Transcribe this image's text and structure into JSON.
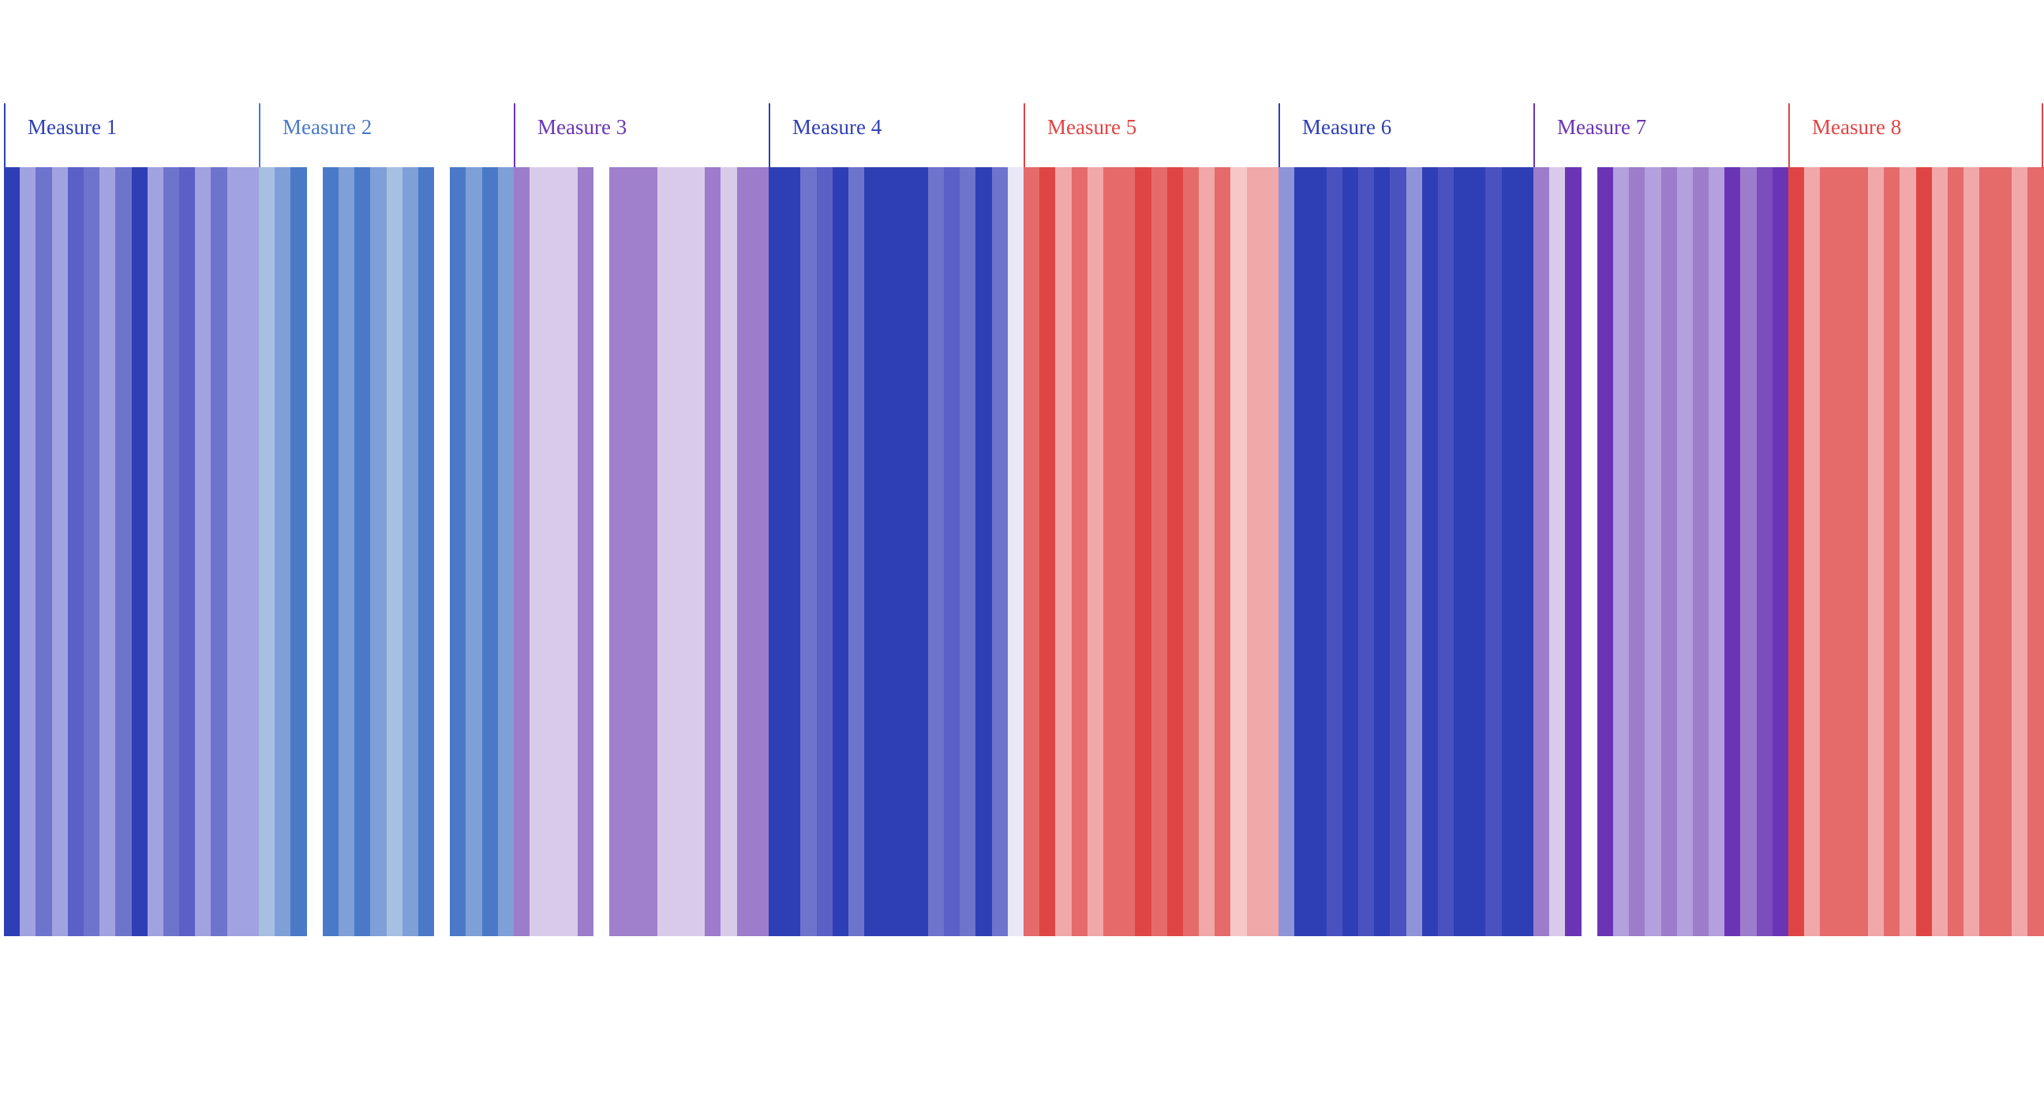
{
  "chart_data": {
    "type": "heatmap",
    "title": "",
    "xlabel": "",
    "ylabel": "",
    "grid": false,
    "legend": "none",
    "measures": [
      {
        "name": "Measure 1",
        "label_color": "#2e3fb5",
        "header_border_color": "#2e3fb5",
        "stripes": [
          "#2e3fb5",
          "#a1a3e0",
          "#6e74cc",
          "#a1a3e0",
          "#5a60c6",
          "#6e74cc",
          "#a1a3e0",
          "#6e74cc",
          "#2e3fb5",
          "#a1a3e0",
          "#6e74cc",
          "#5a60c6",
          "#a1a3e0",
          "#6e74cc",
          "#a1a3e0",
          "#a1a3e0"
        ]
      },
      {
        "name": "Measure 2",
        "label_color": "#4a7ac7",
        "header_border_color": "#4a7ac7",
        "stripes": [
          "#a7c0e2",
          "#7ea0d6",
          "#4a7ac7",
          "#ffffff",
          "#4a7ac7",
          "#7ea0d6",
          "#4a7ac7",
          "#7ea0d6",
          "#a7c0e2",
          "#7ea0d6",
          "#4a7ac7",
          "#ffffff",
          "#4a7ac7",
          "#7ea0d6",
          "#4a7ac7",
          "#7ea0d6"
        ]
      },
      {
        "name": "Measure 3",
        "label_color": "#6a35b5",
        "header_border_color": "#6a35b5",
        "stripes": [
          "#9c7ccb",
          "#d8cbea",
          "#d8cbea",
          "#d8cbea",
          "#9c7ccb",
          "#ffffff",
          "#a07fcc",
          "#a07fcc",
          "#a07fcc",
          "#d8cbea",
          "#d8cbea",
          "#d8cbea",
          "#9c7ccb",
          "#d8cbea",
          "#9c7ccb",
          "#9c7ccb"
        ]
      },
      {
        "name": "Measure 4",
        "label_color": "#2e3fb5",
        "header_border_color": "#2e3fb5",
        "stripes": [
          "#2e3fb5",
          "#2e3fb5",
          "#6e74cc",
          "#5a60c6",
          "#2e3fb5",
          "#6e74cc",
          "#2e3fb5",
          "#2e3fb5",
          "#2e3fb5",
          "#2e3fb5",
          "#6e74cc",
          "#5a60c6",
          "#6e74cc",
          "#2e3fb5",
          "#6e74cc",
          "#e8e8f7"
        ]
      },
      {
        "name": "Measure 5",
        "label_color": "#e04545",
        "header_border_color": "#e04545",
        "stripes": [
          "#e56b6b",
          "#e04545",
          "#f0a8a8",
          "#e56b6b",
          "#f0a8a8",
          "#e56b6b",
          "#e56b6b",
          "#e04545",
          "#e56b6b",
          "#e04545",
          "#e56b6b",
          "#f0a8a8",
          "#e56b6b",
          "#f5c8c8",
          "#f0a8a8",
          "#f0a8a8"
        ]
      },
      {
        "name": "Measure 6",
        "label_color": "#2e3fb5",
        "header_border_color": "#2e3fb5",
        "stripes": [
          "#8f94d8",
          "#2e3fb5",
          "#2e3fb5",
          "#4a52c0",
          "#2e3fb5",
          "#4a52c0",
          "#2e3fb5",
          "#4a52c0",
          "#8f94d8",
          "#2e3fb5",
          "#4a52c0",
          "#2e3fb5",
          "#2e3fb5",
          "#4a52c0",
          "#2e3fb5",
          "#2e3fb5"
        ]
      },
      {
        "name": "Measure 7",
        "label_color": "#6a35b5",
        "header_border_color": "#6a35b5",
        "stripes": [
          "#9c7ccb",
          "#d8cbea",
          "#6a35b5",
          "#ffffff",
          "#6a35b5",
          "#b4a0dc",
          "#9c7ccb",
          "#b4a0dc",
          "#9c7ccb",
          "#b4a0dc",
          "#9c7ccb",
          "#b4a0dc",
          "#6a35b5",
          "#9c7ccb",
          "#7b4dbd",
          "#6a35b5"
        ]
      },
      {
        "name": "Measure 8",
        "label_color": "#e04545",
        "header_border_color": "#e04545",
        "stripes": [
          "#e04545",
          "#f0a8a8",
          "#e56b6b",
          "#e56b6b",
          "#e56b6b",
          "#f0a8a8",
          "#e56b6b",
          "#f0a8a8",
          "#e04545",
          "#f0a8a8",
          "#e56b6b",
          "#f0a8a8",
          "#e56b6b",
          "#e56b6b",
          "#f0a8a8",
          "#e56b6b"
        ]
      }
    ]
  }
}
